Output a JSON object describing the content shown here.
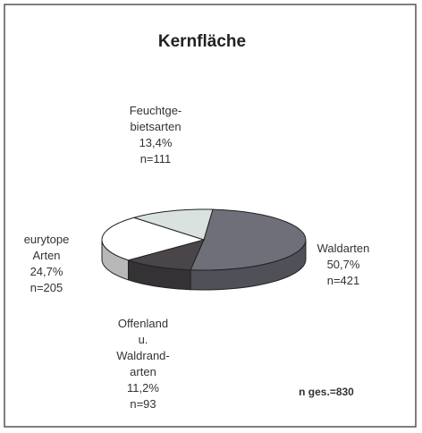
{
  "chart_data": {
    "type": "pie3d",
    "title": "Kernfläche",
    "categories": [
      "Waldarten",
      "Offenland\nu.\nWaldrand-\narten",
      "eurytope\nArten",
      "Feuchtge-\nbietsarten"
    ],
    "values": [
      50.7,
      11.2,
      24.7,
      13.4
    ],
    "value_labels": [
      "50,7%",
      "11,2%",
      "24,7%",
      "13,4%"
    ],
    "counts": [
      421,
      93,
      205,
      111
    ],
    "count_labels": [
      "n=421",
      "n=93",
      "n=205",
      "n=111"
    ],
    "colors": [
      "#6f6f7a",
      "#4a4549",
      "#ffffff",
      "#d9e2de"
    ],
    "total": 830,
    "total_label": "n ges.=830"
  }
}
